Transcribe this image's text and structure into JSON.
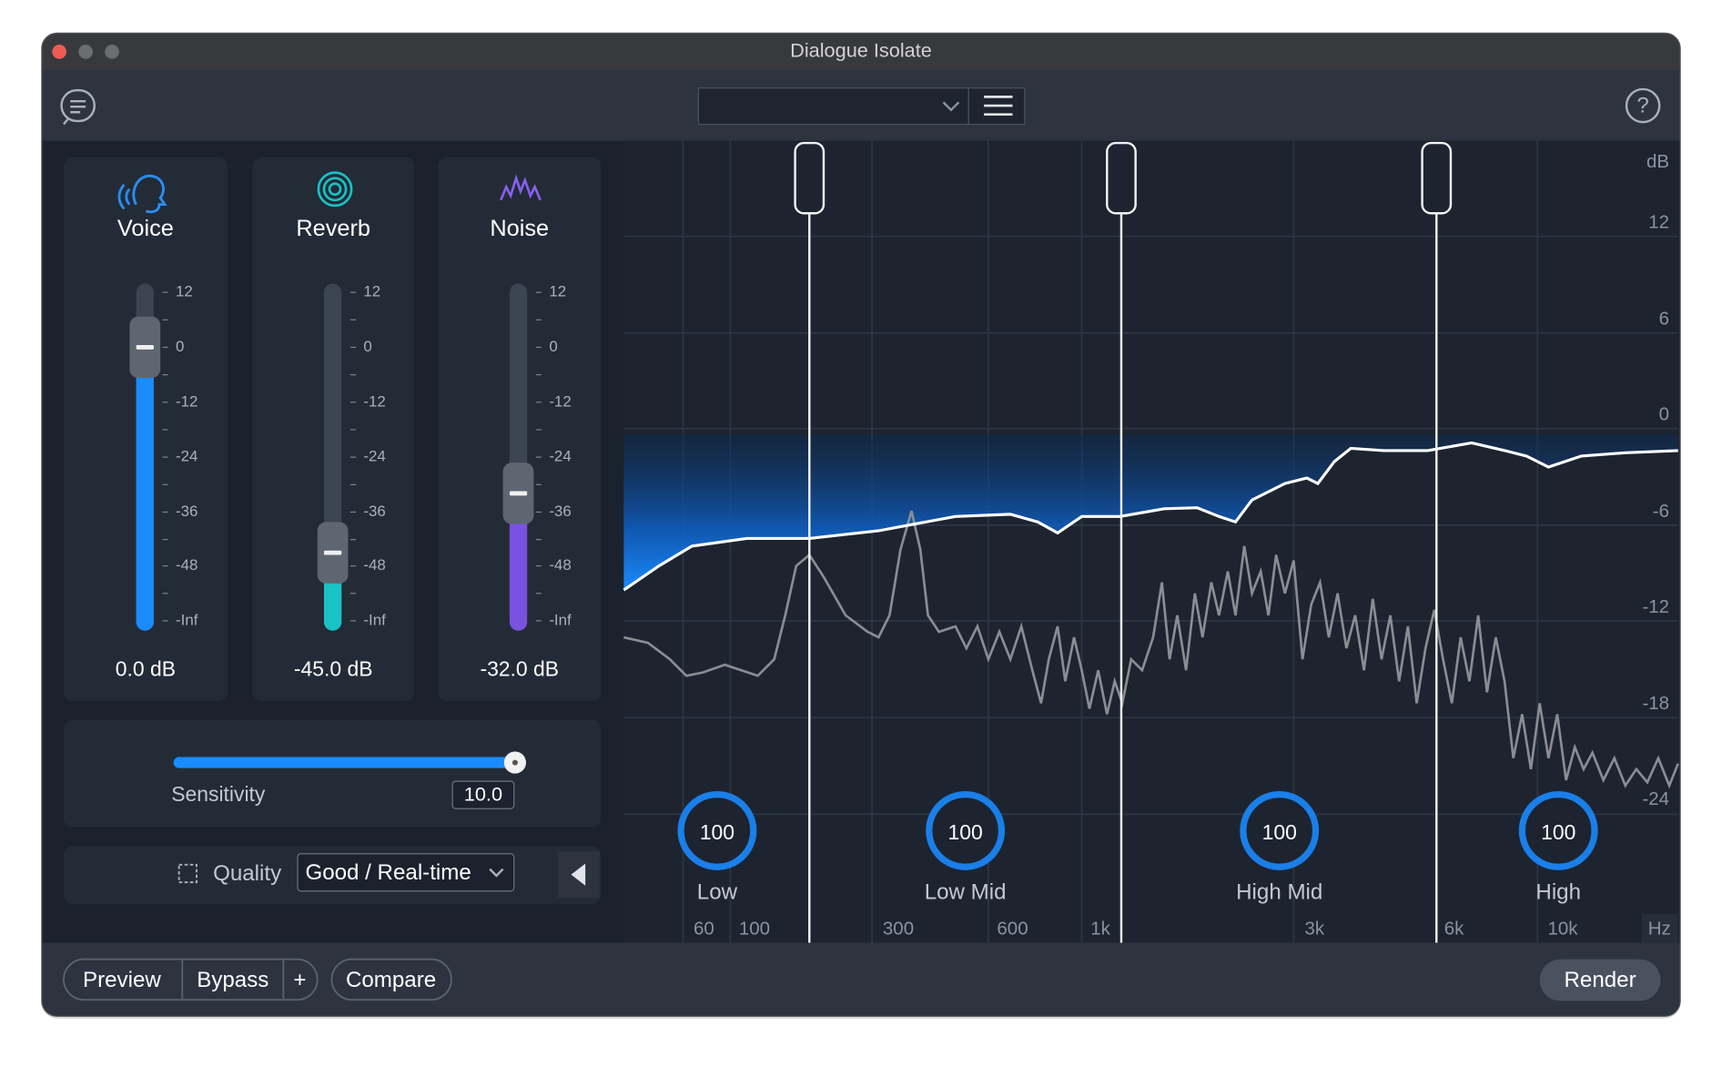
{
  "window": {
    "title": "Dialogue Isolate"
  },
  "modules": [
    {
      "label": "Voice",
      "value": "0.0 dB"
    },
    {
      "label": "Reverb",
      "value": "-45.0 dB"
    },
    {
      "label": "Noise",
      "value": "-32.0 dB"
    }
  ],
  "fader_scale": [
    "12",
    "0",
    "-12",
    "-24",
    "-36",
    "-48",
    "-Inf"
  ],
  "sensitivity": {
    "label": "Sensitivity",
    "value": "10.0"
  },
  "quality": {
    "label": "Quality",
    "value": "Good / Real-time"
  },
  "bands": [
    {
      "label": "Low",
      "value": "100"
    },
    {
      "label": "Low Mid",
      "value": "100"
    },
    {
      "label": "High Mid",
      "value": "100"
    },
    {
      "label": "High",
      "value": "100"
    }
  ],
  "db_axis": {
    "unit": "dB",
    "labels": [
      "12",
      "6",
      "0",
      "-6",
      "-12",
      "-18",
      "-24"
    ]
  },
  "freq_axis": {
    "unit": "Hz",
    "labels": [
      "60",
      "100",
      "300",
      "600",
      "1k",
      "3k",
      "6k",
      "10k"
    ]
  },
  "buttons": {
    "preview": "Preview",
    "bypass": "Bypass",
    "add": "+",
    "compare": "Compare",
    "render": "Render"
  }
}
